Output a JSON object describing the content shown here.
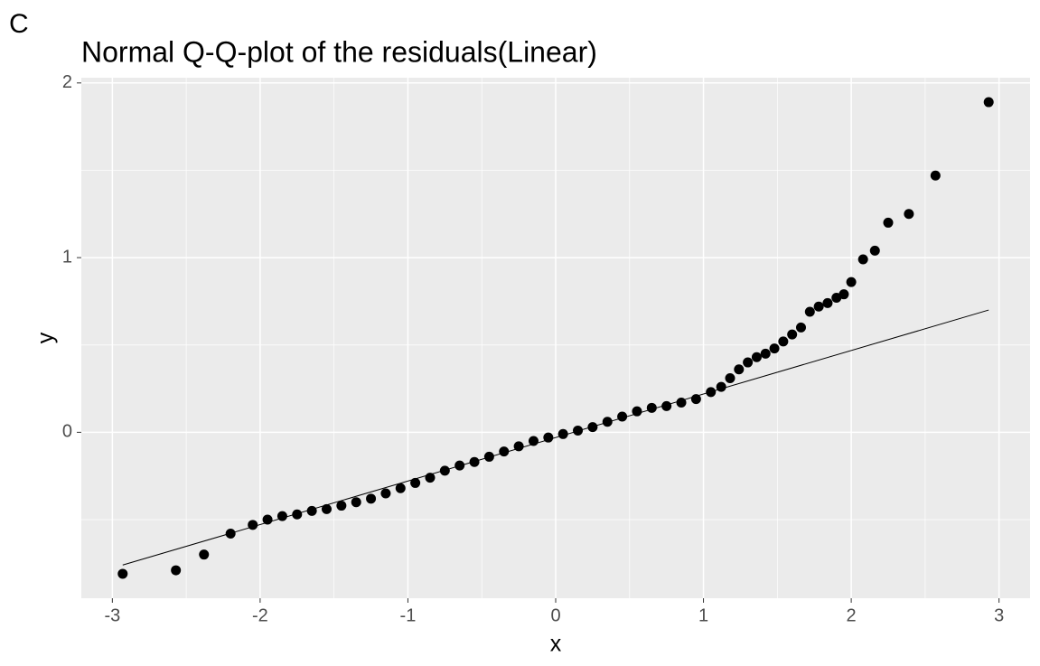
{
  "chart_data": {
    "type": "scatter",
    "tag": "C",
    "title": "Normal Q-Q-plot of the residuals(Linear)",
    "x_label": "x",
    "y_label": "y",
    "xlim": [
      -3.21,
      3.21
    ],
    "ylim": [
      -0.95,
      2.03
    ],
    "xticks": [
      -3,
      -2,
      -1,
      0,
      1,
      2,
      3
    ],
    "yticks": [
      0,
      1,
      2
    ],
    "x_minor_grid": [
      -2.5,
      -1.5,
      -0.5,
      0.5,
      1.5,
      2.5
    ],
    "y_minor_grid": [
      -0.5,
      0.5,
      1.5
    ],
    "grid": true,
    "color": "#000000",
    "x": [
      -2.93,
      -2.57,
      -2.38,
      -2.2,
      -2.05,
      -1.95,
      -1.85,
      -1.75,
      -1.65,
      -1.55,
      -1.45,
      -1.35,
      -1.25,
      -1.15,
      -1.05,
      -0.95,
      -0.85,
      -0.75,
      -0.65,
      -0.55,
      -0.45,
      -0.35,
      -0.25,
      -0.15,
      -0.05,
      0.05,
      0.15,
      0.25,
      0.35,
      0.45,
      0.55,
      0.65,
      0.75,
      0.85,
      0.95,
      1.05,
      1.12,
      1.18,
      1.24,
      1.3,
      1.36,
      1.42,
      1.48,
      1.54,
      1.6,
      1.66,
      1.72,
      1.78,
      1.84,
      1.9,
      1.95,
      2.0,
      2.08,
      2.16,
      2.25,
      2.39,
      2.57,
      2.93
    ],
    "values": [
      -0.81,
      -0.79,
      -0.7,
      -0.58,
      -0.53,
      -0.5,
      -0.48,
      -0.47,
      -0.45,
      -0.44,
      -0.42,
      -0.4,
      -0.38,
      -0.35,
      -0.32,
      -0.29,
      -0.26,
      -0.22,
      -0.19,
      -0.17,
      -0.14,
      -0.11,
      -0.08,
      -0.05,
      -0.03,
      -0.01,
      0.01,
      0.03,
      0.06,
      0.09,
      0.12,
      0.14,
      0.15,
      0.17,
      0.19,
      0.23,
      0.26,
      0.31,
      0.36,
      0.4,
      0.43,
      0.45,
      0.48,
      0.52,
      0.56,
      0.6,
      0.69,
      0.72,
      0.74,
      0.77,
      0.79,
      0.86,
      0.99,
      1.04,
      1.2,
      1.25,
      1.47,
      1.89
    ],
    "reference_line": {
      "x": [
        -2.93,
        2.93
      ],
      "y": [
        -0.76,
        0.7
      ]
    }
  }
}
